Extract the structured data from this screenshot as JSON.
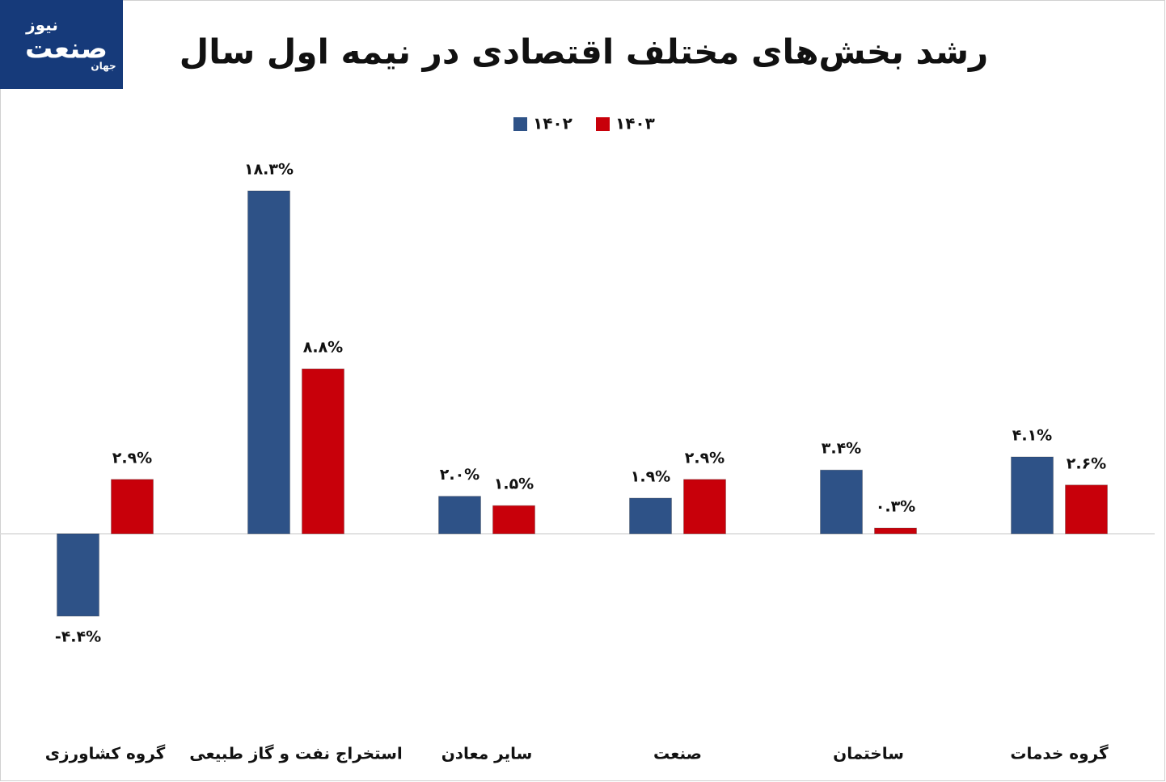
{
  "logo": {
    "small": "جهان",
    "main": "صنعت",
    "sub": "نیوز"
  },
  "chart_data": {
    "type": "bar",
    "title": "رشد بخش‌های مختلف اقتصادی در نیمه اول سال",
    "categories": [
      "گروه کشاورزی",
      "استخراج نفت و گاز طبیعی",
      "سایر معادن",
      "صنعت",
      "ساختمان",
      "گروه خدمات"
    ],
    "series": [
      {
        "name": "۱۴۰۲",
        "color": "#2e5287",
        "values": [
          -4.4,
          18.3,
          2.0,
          1.9,
          3.4,
          4.1
        ],
        "value_labels": [
          "-۴.۴%",
          "۱۸.۳%",
          "۲.۰%",
          "۱.۹%",
          "۳.۴%",
          "۴.۱%"
        ]
      },
      {
        "name": "۱۴۰۳",
        "color": "#c8000a",
        "values": [
          2.9,
          8.8,
          1.5,
          2.9,
          0.3,
          2.6
        ],
        "value_labels": [
          "۲.۹%",
          "۸.۸%",
          "۱.۵%",
          "۲.۹%",
          "۰.۳%",
          "۲.۶%"
        ]
      }
    ]
  }
}
